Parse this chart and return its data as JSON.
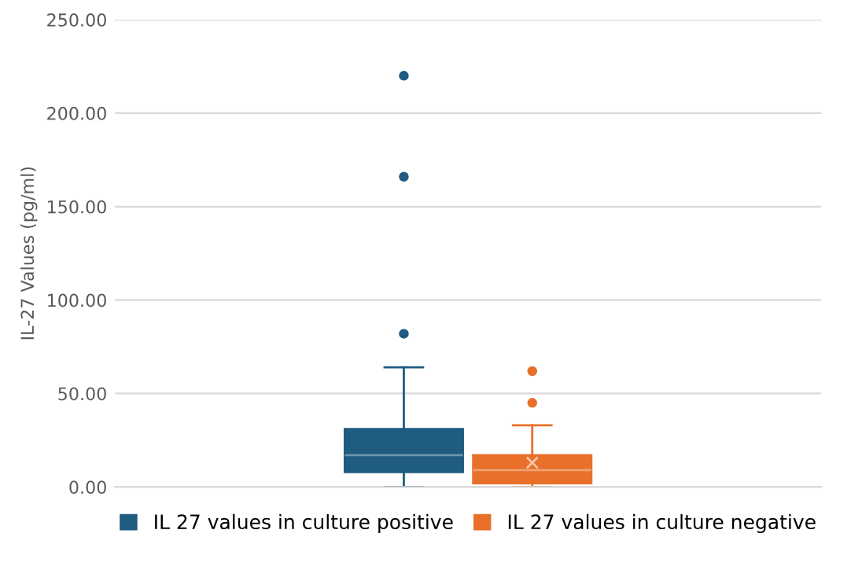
{
  "chart_data": {
    "type": "box",
    "ylabel": "IL-27 Values (pg/ml)",
    "categories": [
      null
    ],
    "ylim": [
      0,
      250
    ],
    "yticks": [
      {
        "value": 0,
        "label": "0.00"
      },
      {
        "value": 50,
        "label": "50.00"
      },
      {
        "value": 100,
        "label": "100.00"
      },
      {
        "value": 150,
        "label": "150.00"
      },
      {
        "value": 200,
        "label": "200.00"
      },
      {
        "value": 250,
        "label": "250.00"
      }
    ],
    "grid": "y",
    "legend": "bottom",
    "series": [
      {
        "name": "IL 27 values in culture positive",
        "color": "#1f5c80",
        "boxes": [
          {
            "low": 0,
            "q1": 8,
            "median": 17,
            "q3": 31,
            "high": 64,
            "outliers": [
              82,
              166,
              220
            ]
          }
        ]
      },
      {
        "name": "IL 27 values in culture negative",
        "color": "#e8702a",
        "boxes": [
          {
            "low": 0,
            "q1": 2,
            "median": 9,
            "q3": 17,
            "high": 33,
            "mean": 13,
            "outliers": [
              45,
              62
            ]
          }
        ]
      }
    ]
  }
}
